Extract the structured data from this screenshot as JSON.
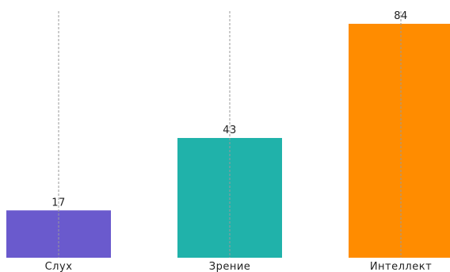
{
  "chart_data": {
    "type": "bar",
    "categories": [
      "Слух",
      "Зрение",
      "Интеллект"
    ],
    "values": [
      17,
      43,
      84
    ],
    "colors": [
      "#6a5acd",
      "#20b2aa",
      "#ff8c00"
    ],
    "data_labels": [
      "17",
      "43",
      "84"
    ],
    "title": "",
    "xlabel": "",
    "ylabel": "",
    "ylim": [
      0,
      84
    ],
    "grid": "vertical dashed lines at each category",
    "y_axis_visible": false,
    "legend": "none"
  }
}
